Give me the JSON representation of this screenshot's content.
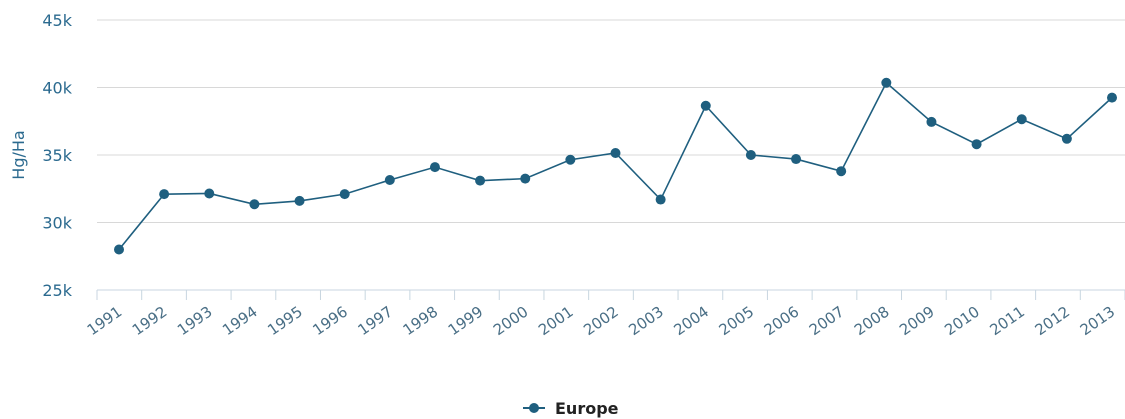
{
  "chart_data": {
    "type": "line",
    "title": "",
    "xlabel": "",
    "ylabel": "Hg/Ha",
    "categories": [
      "1991",
      "1992",
      "1993",
      "1994",
      "1995",
      "1996",
      "1997",
      "1998",
      "1999",
      "2000",
      "2001",
      "2002",
      "2003",
      "2004",
      "2005",
      "2006",
      "2007",
      "2008",
      "2009",
      "2010",
      "2011",
      "2012",
      "2013"
    ],
    "series": [
      {
        "name": "Europe",
        "color": "#1f5f7f",
        "values": [
          28000,
          32100,
          32150,
          31350,
          31600,
          32100,
          33150,
          34100,
          33100,
          33250,
          34650,
          35150,
          31700,
          38650,
          35000,
          34700,
          33800,
          40350,
          37450,
          35800,
          37650,
          36200,
          39250
        ]
      }
    ],
    "ylim": [
      25000,
      45000
    ],
    "yticks": [
      25000,
      30000,
      35000,
      40000,
      45000
    ],
    "ytick_labels": [
      "25k",
      "30k",
      "35k",
      "40k",
      "45k"
    ],
    "grid": true,
    "legend_position": "bottom-center"
  }
}
